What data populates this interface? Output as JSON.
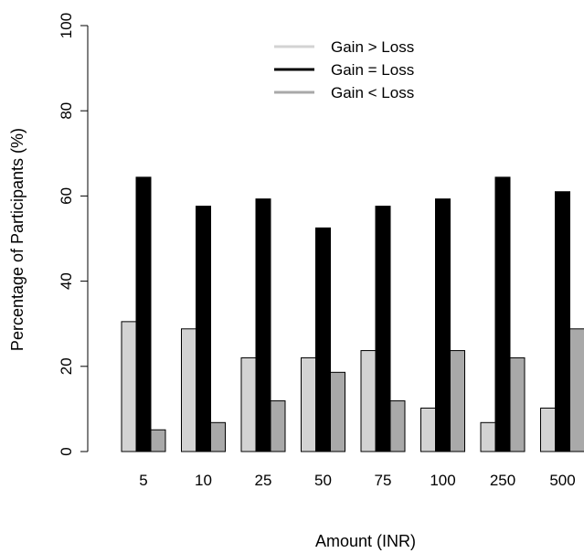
{
  "chart_data": {
    "type": "bar",
    "xlabel": "Amount (INR)",
    "ylabel": "Percentage of Participants (%)",
    "ylim": [
      0,
      100
    ],
    "yticks": [
      "0",
      "20",
      "40",
      "60",
      "80",
      "100"
    ],
    "categories": [
      "5",
      "10",
      "25",
      "50",
      "75",
      "100",
      "250",
      "500"
    ],
    "series": [
      {
        "name": "Gain > Loss",
        "color": "#d3d3d3",
        "values": [
          30.5,
          28.8,
          22.0,
          22.0,
          23.7,
          10.2,
          6.8,
          10.2
        ]
      },
      {
        "name": "Gain = Loss",
        "color": "#000000",
        "values": [
          64.4,
          57.6,
          59.3,
          52.5,
          57.6,
          59.3,
          64.4,
          61.0
        ]
      },
      {
        "name": "Gain < Loss",
        "color": "#a9a9a9",
        "values": [
          5.1,
          6.8,
          11.9,
          18.6,
          11.9,
          23.7,
          22.0,
          28.8
        ]
      }
    ],
    "legend_position": "top-center",
    "grid": false
  }
}
